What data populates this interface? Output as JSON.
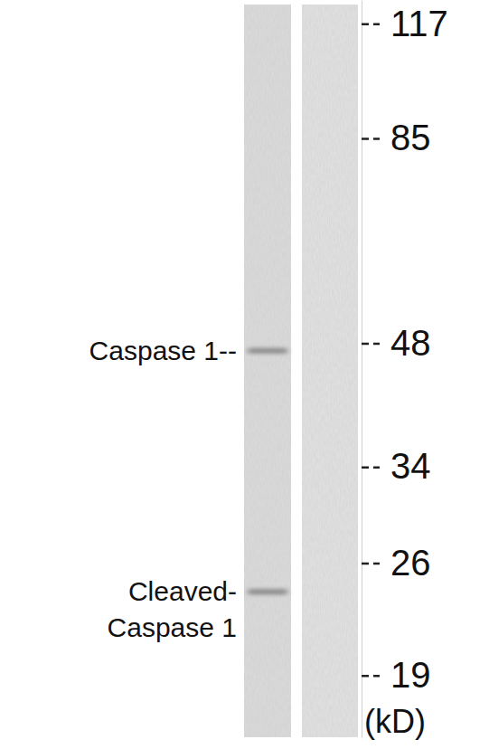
{
  "chart_data": {
    "type": "blot",
    "y_label": "(kD)",
    "log": "y",
    "ylim": [
      16,
      125
    ],
    "yticks": [
      117,
      85,
      48,
      34,
      26,
      19
    ],
    "bands": [
      {
        "value": 47,
        "label": [
          "Caspase 1--"
        ]
      },
      {
        "value": 24,
        "label": [
          "Cleaved-",
          "Caspase 1"
        ]
      }
    ]
  }
}
